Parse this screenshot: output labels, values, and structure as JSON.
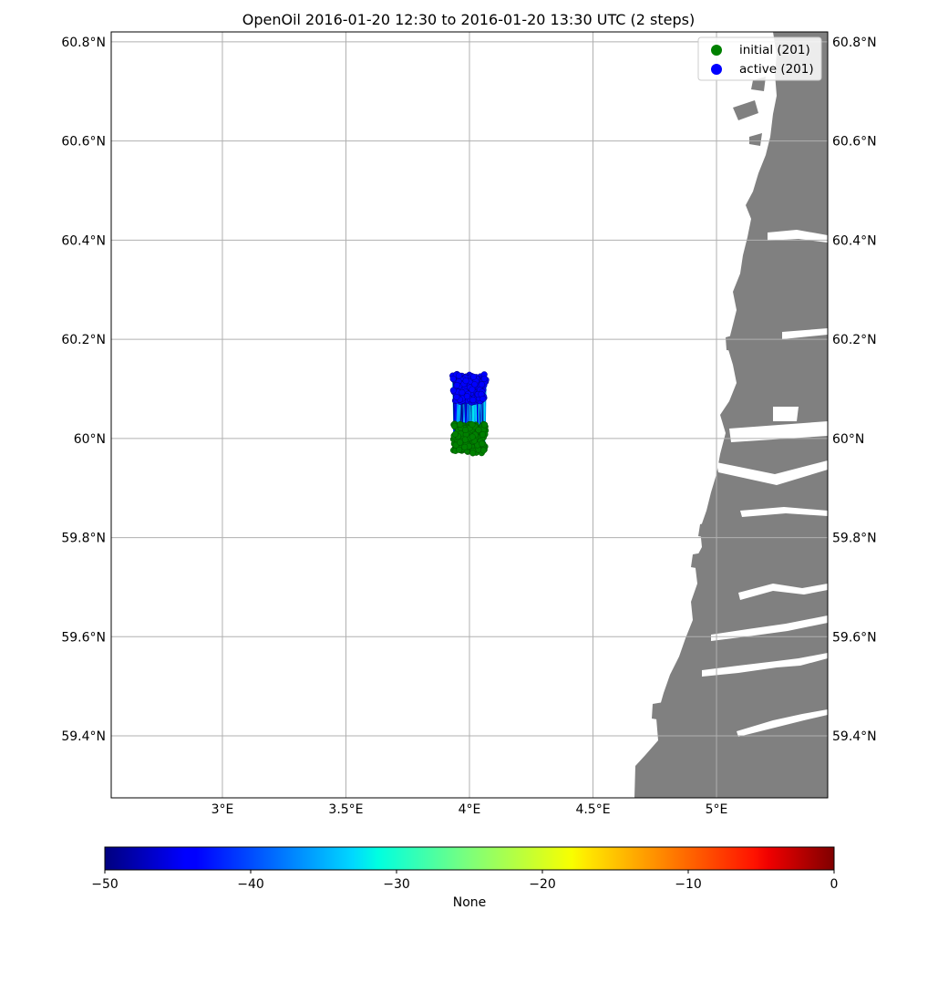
{
  "title": "OpenOil  2016-01-20 12:30 to 2016-01-20 13:30 UTC (2 steps)",
  "map": {
    "lon_range": [
      2.55,
      5.45
    ],
    "lat_range": [
      59.275,
      60.82
    ],
    "lon_ticks": [
      {
        "value": 3.0,
        "label": "3°E"
      },
      {
        "value": 3.5,
        "label": "3.5°E"
      },
      {
        "value": 4.0,
        "label": "4°E"
      },
      {
        "value": 4.5,
        "label": "4.5°E"
      },
      {
        "value": 5.0,
        "label": "5°E"
      }
    ],
    "lat_ticks": [
      {
        "value": 60.8,
        "label": "60.8°N"
      },
      {
        "value": 60.6,
        "label": "60.6°N"
      },
      {
        "value": 60.4,
        "label": "60.4°N"
      },
      {
        "value": 60.2,
        "label": "60.2°N"
      },
      {
        "value": 60.0,
        "label": "60°N"
      },
      {
        "value": 59.8,
        "label": "59.8°N"
      },
      {
        "value": 59.6,
        "label": "59.6°N"
      },
      {
        "value": 59.4,
        "label": "59.4°N"
      }
    ],
    "land_color": "#808080",
    "grid": true
  },
  "legend": {
    "items": [
      {
        "label": "initial (201)",
        "color": "#008000"
      },
      {
        "label": "active (201)",
        "color": "#0000ff"
      }
    ]
  },
  "particles": {
    "count": 201,
    "initial_center": [
      4.0,
      60.0
    ],
    "active_center": [
      4.0,
      60.1
    ]
  },
  "colorbar": {
    "min": -50,
    "max": 0,
    "label": "None",
    "ticks": [
      {
        "value": -50,
        "label": "−50"
      },
      {
        "value": -40,
        "label": "−40"
      },
      {
        "value": -30,
        "label": "−30"
      },
      {
        "value": -20,
        "label": "−20"
      },
      {
        "value": -10,
        "label": "−10"
      },
      {
        "value": 0,
        "label": "0"
      }
    ]
  }
}
